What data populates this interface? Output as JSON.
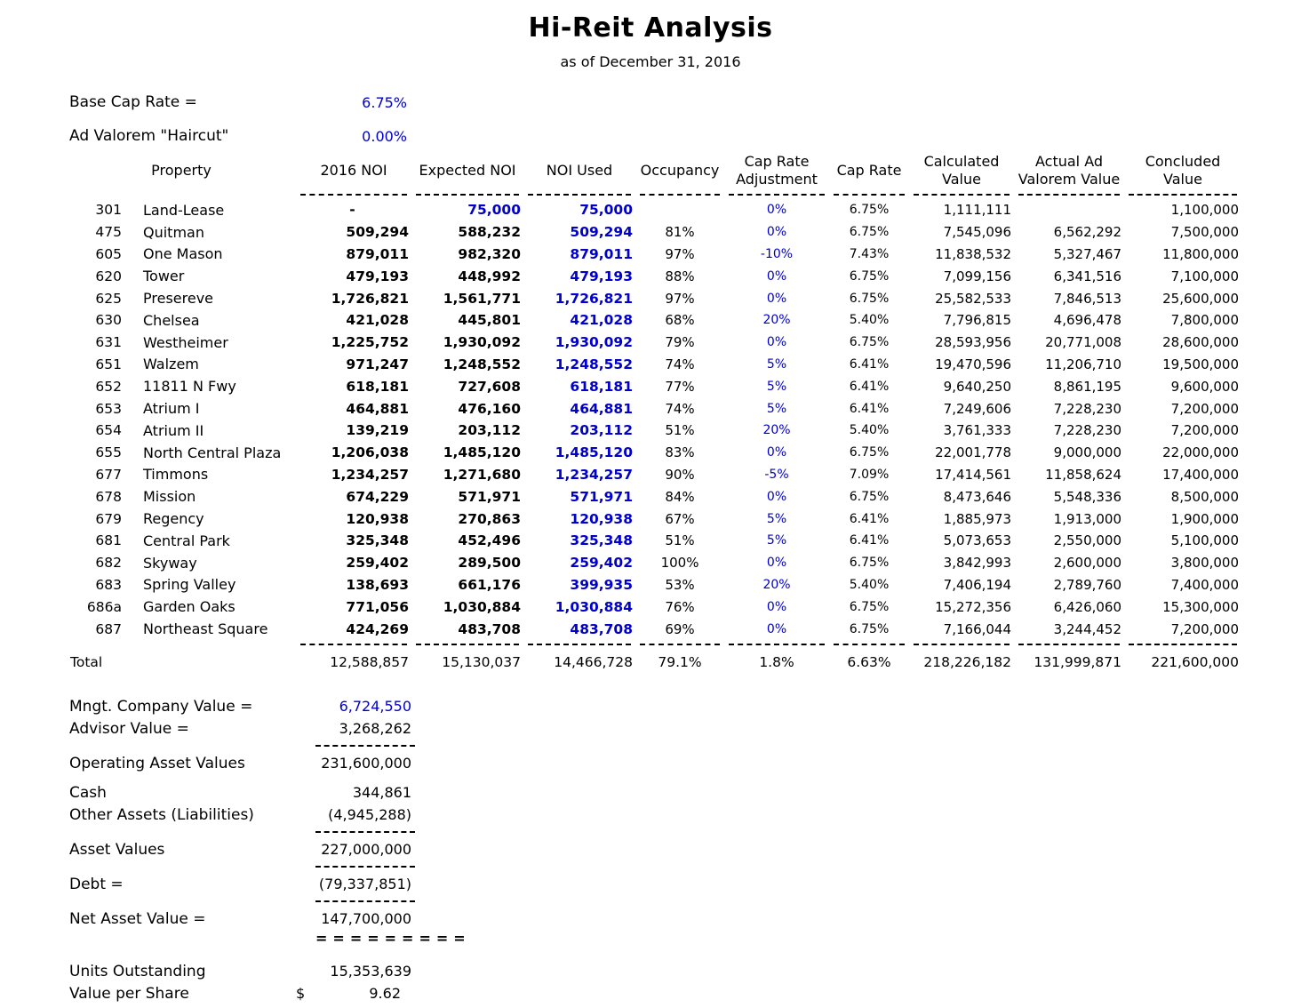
{
  "colors": {
    "accent_blue": "#0000cc",
    "text": "#000000",
    "background": "#ffffff"
  },
  "header": {
    "title": "Hi-Reit Analysis",
    "subtitle": "as of December 31, 2016"
  },
  "assumptions": {
    "base_cap_rate_label": "Base Cap Rate =",
    "base_cap_rate_value": "6.75%",
    "ad_valorem_haircut_label": "Ad Valorem \"Haircut\"",
    "ad_valorem_haircut_value": "0.00%"
  },
  "table": {
    "headers": {
      "property": "Property",
      "noi_2016": "2016 NOI",
      "expected_noi": "Expected NOI",
      "noi_used": "NOI Used",
      "occupancy": "Occupancy",
      "cap_rate_adjustment_line1": "Cap Rate",
      "cap_rate_adjustment_line2": "Adjustment",
      "cap_rate": "Cap Rate",
      "calculated_value_line1": "Calculated",
      "calculated_value_line2": "Value",
      "actual_ad_valorem_line1": "Actual Ad",
      "actual_ad_valorem_line2": "Valorem Value",
      "concluded_value_line1": "Concluded",
      "concluded_value_line2": "Value"
    },
    "rows": [
      {
        "id": "301",
        "property": "Land-Lease",
        "noi_2016": "-",
        "expected_noi": "75,000",
        "expected_noi_input": true,
        "noi_used": "75,000",
        "occupancy": "",
        "cap_rate_adjustment": "0%",
        "cap_rate": "6.75%",
        "calculated_value": "1,111,111",
        "actual_ad_valorem_value": "",
        "concluded_value": "1,100,000"
      },
      {
        "id": "475",
        "property": "Quitman",
        "noi_2016": "509,294",
        "expected_noi": "588,232",
        "noi_used": "509,294",
        "occupancy": "81%",
        "cap_rate_adjustment": "0%",
        "cap_rate": "6.75%",
        "calculated_value": "7,545,096",
        "actual_ad_valorem_value": "6,562,292",
        "concluded_value": "7,500,000"
      },
      {
        "id": "605",
        "property": "One Mason",
        "noi_2016": "879,011",
        "expected_noi": "982,320",
        "noi_used": "879,011",
        "occupancy": "97%",
        "cap_rate_adjustment": "-10%",
        "cap_rate": "7.43%",
        "calculated_value": "11,838,532",
        "actual_ad_valorem_value": "5,327,467",
        "concluded_value": "11,800,000"
      },
      {
        "id": "620",
        "property": "Tower",
        "noi_2016": "479,193",
        "expected_noi": "448,992",
        "noi_used": "479,193",
        "occupancy": "88%",
        "cap_rate_adjustment": "0%",
        "cap_rate": "6.75%",
        "calculated_value": "7,099,156",
        "actual_ad_valorem_value": "6,341,516",
        "concluded_value": "7,100,000"
      },
      {
        "id": "625",
        "property": "Presereve",
        "noi_2016": "1,726,821",
        "expected_noi": "1,561,771",
        "noi_used": "1,726,821",
        "occupancy": "97%",
        "cap_rate_adjustment": "0%",
        "cap_rate": "6.75%",
        "calculated_value": "25,582,533",
        "actual_ad_valorem_value": "7,846,513",
        "concluded_value": "25,600,000"
      },
      {
        "id": "630",
        "property": "Chelsea",
        "noi_2016": "421,028",
        "expected_noi": "445,801",
        "noi_used": "421,028",
        "occupancy": "68%",
        "cap_rate_adjustment": "20%",
        "cap_rate": "5.40%",
        "calculated_value": "7,796,815",
        "actual_ad_valorem_value": "4,696,478",
        "concluded_value": "7,800,000"
      },
      {
        "id": "631",
        "property": "Westheimer",
        "noi_2016": "1,225,752",
        "expected_noi": "1,930,092",
        "noi_used": "1,930,092",
        "occupancy": "79%",
        "cap_rate_adjustment": "0%",
        "cap_rate": "6.75%",
        "calculated_value": "28,593,956",
        "actual_ad_valorem_value": "20,771,008",
        "concluded_value": "28,600,000"
      },
      {
        "id": "651",
        "property": "Walzem",
        "noi_2016": "971,247",
        "expected_noi": "1,248,552",
        "noi_used": "1,248,552",
        "occupancy": "74%",
        "cap_rate_adjustment": "5%",
        "cap_rate": "6.41%",
        "calculated_value": "19,470,596",
        "actual_ad_valorem_value": "11,206,710",
        "concluded_value": "19,500,000"
      },
      {
        "id": "652",
        "property": "11811 N Fwy",
        "noi_2016": "618,181",
        "expected_noi": "727,608",
        "noi_used": "618,181",
        "occupancy": "77%",
        "cap_rate_adjustment": "5%",
        "cap_rate": "6.41%",
        "calculated_value": "9,640,250",
        "actual_ad_valorem_value": "8,861,195",
        "concluded_value": "9,600,000"
      },
      {
        "id": "653",
        "property": "Atrium I",
        "noi_2016": "464,881",
        "expected_noi": "476,160",
        "noi_used": "464,881",
        "occupancy": "74%",
        "cap_rate_adjustment": "5%",
        "cap_rate": "6.41%",
        "calculated_value": "7,249,606",
        "actual_ad_valorem_value": "7,228,230",
        "concluded_value": "7,200,000"
      },
      {
        "id": "654",
        "property": "Atrium II",
        "noi_2016": "139,219",
        "expected_noi": "203,112",
        "noi_used": "203,112",
        "occupancy": "51%",
        "cap_rate_adjustment": "20%",
        "cap_rate": "5.40%",
        "calculated_value": "3,761,333",
        "actual_ad_valorem_value": "7,228,230",
        "concluded_value": "7,200,000"
      },
      {
        "id": "655",
        "property": "North Central Plaza",
        "noi_2016": "1,206,038",
        "expected_noi": "1,485,120",
        "noi_used": "1,485,120",
        "occupancy": "83%",
        "cap_rate_adjustment": "0%",
        "cap_rate": "6.75%",
        "calculated_value": "22,001,778",
        "actual_ad_valorem_value": "9,000,000",
        "concluded_value": "22,000,000"
      },
      {
        "id": "677",
        "property": "Timmons",
        "noi_2016": "1,234,257",
        "expected_noi": "1,271,680",
        "noi_used": "1,234,257",
        "occupancy": "90%",
        "cap_rate_adjustment": "-5%",
        "cap_rate": "7.09%",
        "calculated_value": "17,414,561",
        "actual_ad_valorem_value": "11,858,624",
        "concluded_value": "17,400,000"
      },
      {
        "id": "678",
        "property": "Mission",
        "noi_2016": "674,229",
        "expected_noi": "571,971",
        "noi_used": "571,971",
        "occupancy": "84%",
        "cap_rate_adjustment": "0%",
        "cap_rate": "6.75%",
        "calculated_value": "8,473,646",
        "actual_ad_valorem_value": "5,548,336",
        "concluded_value": "8,500,000"
      },
      {
        "id": "679",
        "property": "Regency",
        "noi_2016": "120,938",
        "expected_noi": "270,863",
        "noi_used": "120,938",
        "occupancy": "67%",
        "cap_rate_adjustment": "5%",
        "cap_rate": "6.41%",
        "calculated_value": "1,885,973",
        "actual_ad_valorem_value": "1,913,000",
        "concluded_value": "1,900,000"
      },
      {
        "id": "681",
        "property": "Central Park",
        "noi_2016": "325,348",
        "expected_noi": "452,496",
        "noi_used": "325,348",
        "occupancy": "51%",
        "cap_rate_adjustment": "5%",
        "cap_rate": "6.41%",
        "calculated_value": "5,073,653",
        "actual_ad_valorem_value": "2,550,000",
        "concluded_value": "5,100,000"
      },
      {
        "id": "682",
        "property": "Skyway",
        "noi_2016": "259,402",
        "expected_noi": "289,500",
        "noi_used": "259,402",
        "occupancy": "100%",
        "cap_rate_adjustment": "0%",
        "cap_rate": "6.75%",
        "calculated_value": "3,842,993",
        "actual_ad_valorem_value": "2,600,000",
        "concluded_value": "3,800,000"
      },
      {
        "id": "683",
        "property": "Spring Valley",
        "noi_2016": "138,693",
        "expected_noi": "661,176",
        "noi_used": "399,935",
        "occupancy": "53%",
        "cap_rate_adjustment": "20%",
        "cap_rate": "5.40%",
        "calculated_value": "7,406,194",
        "actual_ad_valorem_value": "2,789,760",
        "concluded_value": "7,400,000"
      },
      {
        "id": "686a",
        "property": "Garden Oaks",
        "noi_2016": "771,056",
        "expected_noi": "1,030,884",
        "noi_used": "1,030,884",
        "occupancy": "76%",
        "cap_rate_adjustment": "0%",
        "cap_rate": "6.75%",
        "calculated_value": "15,272,356",
        "actual_ad_valorem_value": "6,426,060",
        "concluded_value": "15,300,000"
      },
      {
        "id": "687",
        "property": "Northeast Square",
        "noi_2016": "424,269",
        "expected_noi": "483,708",
        "noi_used": "483,708",
        "occupancy": "69%",
        "cap_rate_adjustment": "0%",
        "cap_rate": "6.75%",
        "calculated_value": "7,166,044",
        "actual_ad_valorem_value": "3,244,452",
        "concluded_value": "7,200,000"
      }
    ],
    "total": {
      "label": "Total",
      "noi_2016": "12,588,857",
      "expected_noi": "15,130,037",
      "noi_used": "14,466,728",
      "occupancy": "79.1%",
      "cap_rate_adjustment": "1.8%",
      "cap_rate": "6.63%",
      "calculated_value": "218,226,182",
      "actual_ad_valorem_value": "131,999,871",
      "concluded_value": "221,600,000"
    }
  },
  "summary": {
    "mngt_company_label": "Mngt. Company Value =",
    "mngt_company_value": "6,724,550",
    "advisor_label": "Advisor Value =",
    "advisor_value": "3,268,262",
    "operating_asset_label": "Operating Asset Values",
    "operating_asset_value": "231,600,000",
    "cash_label": "Cash",
    "cash_value": "344,861",
    "other_assets_label": "Other Assets (Liabilities)",
    "other_assets_value": "(4,945,288)",
    "asset_values_label": "Asset Values",
    "asset_values_value": "227,000,000",
    "debt_label": "Debt =",
    "debt_value": "(79,337,851)",
    "nav_label": "Net Asset Value =",
    "nav_value": "147,700,000",
    "nav_underline": "=========",
    "units_label": "Units Outstanding",
    "units_value": "15,353,639",
    "vps_label": "Value per Share",
    "vps_currency": "$",
    "vps_value": "9.62"
  }
}
